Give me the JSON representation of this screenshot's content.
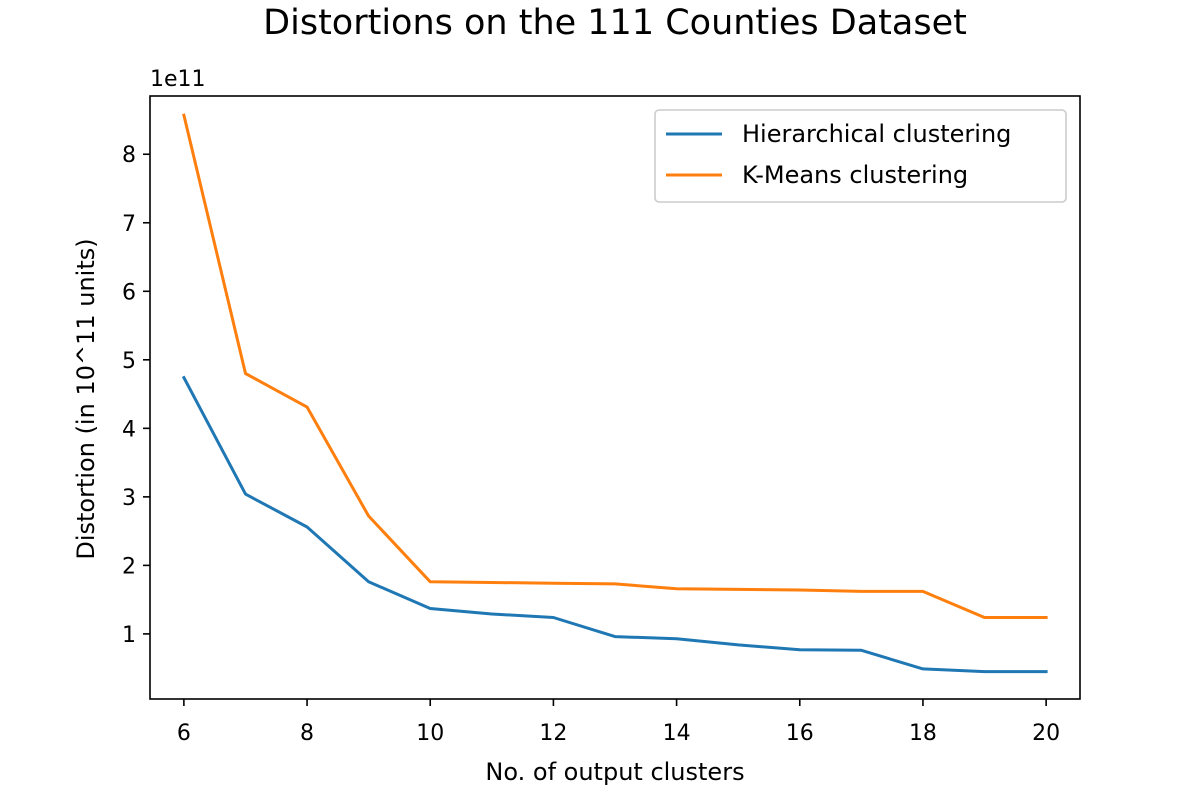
{
  "chart_data": {
    "type": "line",
    "title": "Distortions on the 111 Counties Dataset",
    "xlabel": "No. of output clusters",
    "ylabel": "Distortion (in 10^11 units)",
    "y_scale_label": "1e11",
    "x": [
      6,
      7,
      8,
      9,
      10,
      11,
      12,
      13,
      14,
      15,
      16,
      17,
      18,
      19,
      20
    ],
    "xlim": [
      5.45,
      20.55
    ],
    "ylim": [
      0.05,
      8.85
    ],
    "x_ticks": [
      6,
      8,
      10,
      12,
      14,
      16,
      18,
      20
    ],
    "y_ticks": [
      1,
      2,
      3,
      4,
      5,
      6,
      7,
      8
    ],
    "grid": false,
    "legend_position": "upper right",
    "series": [
      {
        "name": "Hierarchical clustering",
        "color": "#1f77b4",
        "values": [
          4.74,
          3.04,
          2.56,
          1.76,
          1.37,
          1.29,
          1.24,
          0.96,
          0.93,
          0.84,
          0.77,
          0.76,
          0.49,
          0.45,
          0.45
        ]
      },
      {
        "name": "K-Means clustering",
        "color": "#ff7f0e",
        "values": [
          8.57,
          4.8,
          4.31,
          2.72,
          1.76,
          1.75,
          1.74,
          1.73,
          1.66,
          1.65,
          1.64,
          1.62,
          1.62,
          1.24,
          1.24
        ]
      }
    ]
  }
}
